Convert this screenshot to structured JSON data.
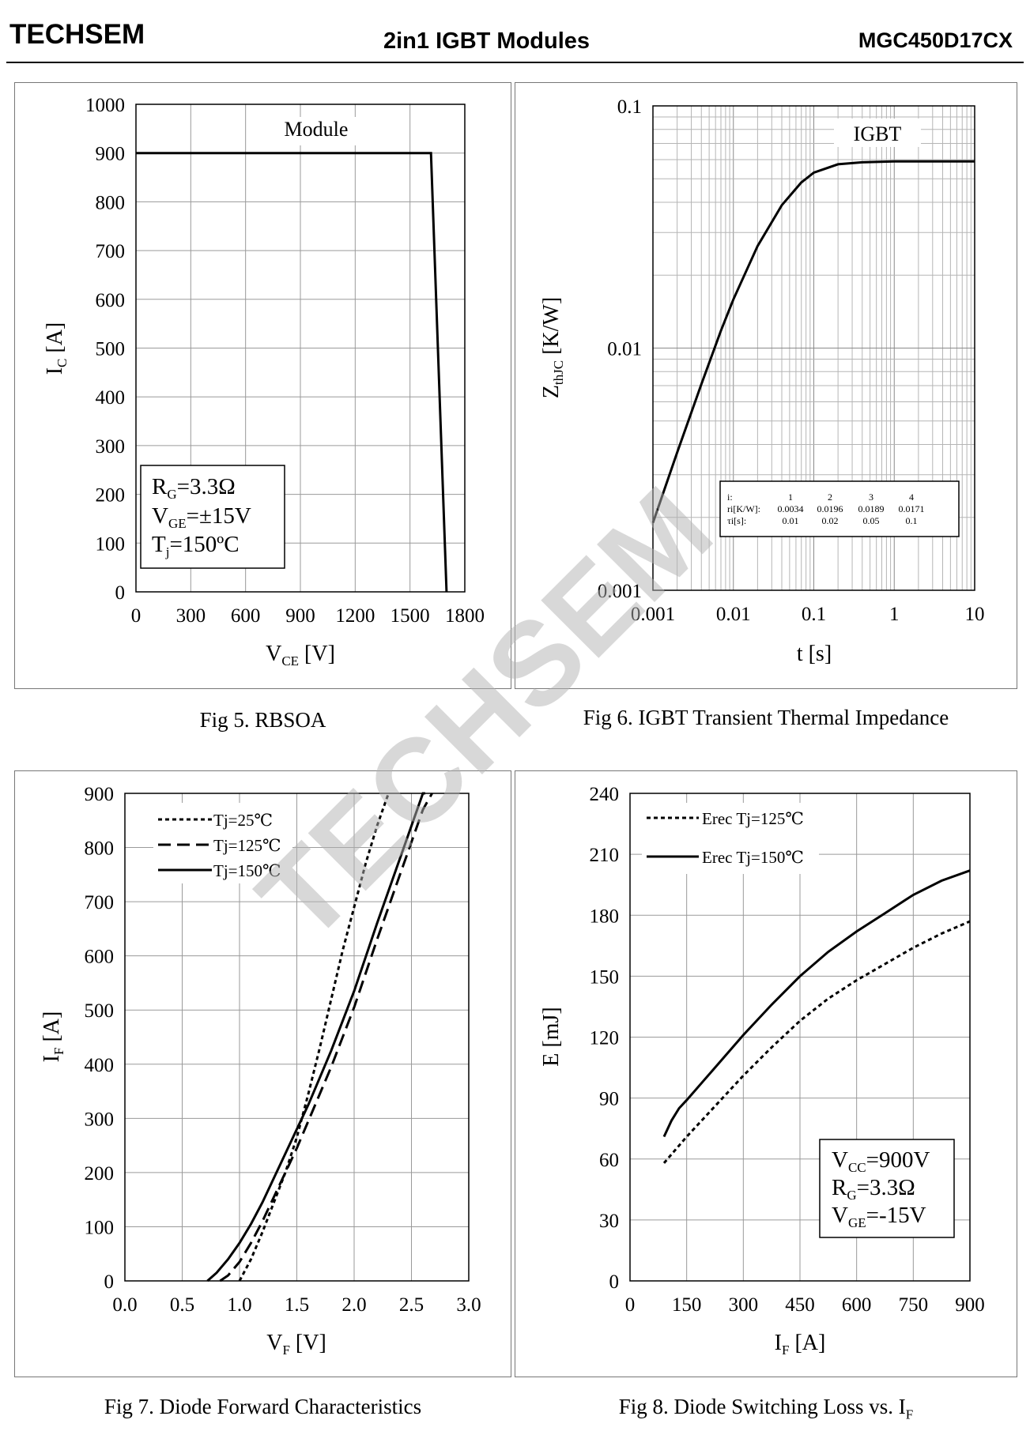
{
  "header": {
    "brand": "TECHSEM",
    "title": "2in1  IGBT  Modules",
    "part": "MGC450D17CX"
  },
  "watermark": "TECHSEM",
  "chart_data": [
    {
      "type": "line",
      "title": "Fig 5. RBSOA",
      "xlabel_main": "V",
      "xlabel_sub": "CE",
      "xlabel_unit": " [V]",
      "ylabel_main": "I",
      "ylabel_sub": "C",
      "ylabel_unit": " [A]",
      "xlim": [
        0,
        1800
      ],
      "ylim": [
        0,
        1000
      ],
      "xticks": [
        "0",
        "300",
        "600",
        "900",
        "1200",
        "1500",
        "1800"
      ],
      "yticks": [
        "0",
        "100",
        "200",
        "300",
        "400",
        "500",
        "600",
        "700",
        "800",
        "900",
        "1000"
      ],
      "annotation": "Module",
      "series": [
        {
          "name": "Module",
          "x": [
            0,
            1615,
            1700
          ],
          "y": [
            900,
            900,
            0
          ]
        }
      ],
      "conditions": [
        {
          "main": "R",
          "sub": "G",
          "rest": "=3.3Ω"
        },
        {
          "main": "V",
          "sub": "GE",
          "rest": "=±15V"
        },
        {
          "main": "T",
          "sub": "j",
          "rest": "=150ºC"
        }
      ]
    },
    {
      "type": "line",
      "title": "Fig 6. IGBT Transient Thermal Impedance",
      "xscale": "log",
      "yscale": "log",
      "xlabel": "t [s]",
      "ylabel_main": "Z",
      "ylabel_sub": "thJC",
      "ylabel_unit": " [K/W]",
      "xlim": [
        0.001,
        10
      ],
      "ylim": [
        0.001,
        0.1
      ],
      "xticks": [
        "0.001",
        "0.01",
        "0.1",
        "1",
        "10"
      ],
      "yticks": [
        "0.001",
        "0.01",
        "0.1"
      ],
      "annotation": "IGBT",
      "series": [
        {
          "name": "IGBT",
          "x": [
            0.001,
            0.002,
            0.004,
            0.007,
            0.01,
            0.02,
            0.04,
            0.07,
            0.1,
            0.2,
            0.4,
            1,
            3,
            10
          ],
          "y": [
            0.0019,
            0.0037,
            0.0071,
            0.0118,
            0.0159,
            0.0264,
            0.0389,
            0.0483,
            0.053,
            0.0574,
            0.0585,
            0.059,
            0.059,
            0.059
          ]
        }
      ],
      "table": {
        "rows": [
          [
            "i:",
            "1",
            "2",
            "3",
            "4"
          ],
          [
            "ri[K/W]:",
            "0.0034",
            "0.0196",
            "0.0189",
            "0.0171"
          ],
          [
            "τi[s]:",
            "0.01",
            "0.02",
            "0.05",
            "0.1"
          ]
        ]
      }
    },
    {
      "type": "line",
      "title": "Fig 7. Diode Forward Characteristics",
      "xlabel_main": "V",
      "xlabel_sub": "F",
      "xlabel_unit": "  [V]",
      "ylabel_main": "I",
      "ylabel_sub": "F",
      "ylabel_unit": " [A]",
      "xlim": [
        0,
        3.0
      ],
      "ylim": [
        0,
        900
      ],
      "xticks": [
        "0.0",
        "0.5",
        "1.0",
        "1.5",
        "2.0",
        "2.5",
        "3.0"
      ],
      "yticks": [
        "0",
        "100",
        "200",
        "300",
        "400",
        "500",
        "600",
        "700",
        "800",
        "900"
      ],
      "series": [
        {
          "name": "Tj=25℃",
          "dash": "short",
          "x": [
            1.0,
            1.1,
            1.2,
            1.3,
            1.4,
            1.5,
            1.6,
            1.7,
            1.8,
            1.9,
            2.0,
            2.1,
            2.2,
            2.3
          ],
          "y": [
            0,
            40,
            90,
            145,
            200,
            265,
            345,
            430,
            520,
            610,
            690,
            770,
            840,
            900
          ]
        },
        {
          "name": "Tj=125℃",
          "dash": "long",
          "x": [
            0.83,
            0.9,
            1.0,
            1.1,
            1.2,
            1.3,
            1.4,
            1.5,
            1.6,
            1.7,
            1.8,
            1.9,
            2.0,
            2.2,
            2.4,
            2.6,
            2.68
          ],
          "y": [
            0,
            10,
            35,
            70,
            110,
            155,
            200,
            245,
            295,
            345,
            395,
            450,
            505,
            630,
            750,
            870,
            900
          ]
        },
        {
          "name": "Tj=150℃",
          "dash": "solid",
          "x": [
            0.72,
            0.8,
            0.9,
            1.0,
            1.1,
            1.2,
            1.3,
            1.4,
            1.5,
            1.6,
            1.7,
            1.8,
            1.9,
            2.0,
            2.2,
            2.4,
            2.6,
            2.62
          ],
          "y": [
            0,
            15,
            40,
            70,
            105,
            145,
            190,
            235,
            280,
            325,
            375,
            425,
            480,
            535,
            660,
            780,
            900,
            900
          ]
        }
      ]
    },
    {
      "type": "line",
      "title_main": "Fig 8. Diode Switching Loss vs. I",
      "title_sub": "F",
      "xlabel_main": "I",
      "xlabel_sub": "F",
      "xlabel_unit": " [A]",
      "ylabel": "E [mJ]",
      "xlim": [
        0,
        900
      ],
      "ylim": [
        0,
        240
      ],
      "xticks": [
        "0",
        "150",
        "300",
        "450",
        "600",
        "750",
        "900"
      ],
      "yticks": [
        "0",
        "30",
        "60",
        "90",
        "120",
        "150",
        "180",
        "210",
        "240"
      ],
      "series": [
        {
          "name": "Erec Tj=125℃",
          "dash": "short",
          "x": [
            90,
            150,
            225,
            300,
            375,
            450,
            525,
            600,
            675,
            750,
            825,
            900
          ],
          "y": [
            58,
            71,
            86,
            101,
            115,
            128,
            139,
            148,
            156,
            164,
            171,
            177
          ]
        },
        {
          "name": "Erec Tj=150℃",
          "dash": "solid",
          "x": [
            90,
            110,
            130,
            150,
            225,
            300,
            375,
            450,
            525,
            600,
            675,
            750,
            825,
            900
          ],
          "y": [
            71,
            79,
            85,
            89,
            105,
            121,
            136,
            150,
            162,
            172,
            181,
            190,
            197,
            202
          ]
        }
      ],
      "conditions": [
        {
          "main": "V",
          "sub": "CC",
          "rest": "=900V"
        },
        {
          "main": "R",
          "sub": "G",
          "rest": "=3.3Ω"
        },
        {
          "main": "V",
          "sub": "GE",
          "rest": "=-15V"
        }
      ]
    }
  ]
}
